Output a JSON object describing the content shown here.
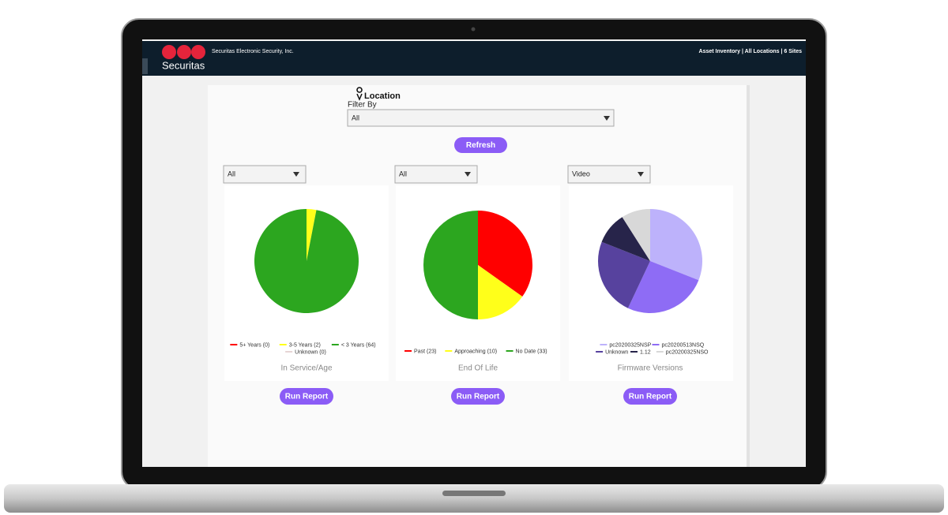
{
  "header": {
    "company": "Securitas",
    "subtitle": "Securitas Electronic Security, Inc.",
    "breadcrumb": "Asset Inventory | All Locations | 6 Sites"
  },
  "filter": {
    "title": "Location",
    "label": "Filter By",
    "selected": "All",
    "button": "Refresh"
  },
  "cards": [
    {
      "dropdown": "All",
      "button": "Run Report"
    },
    {
      "dropdown": "All",
      "button": "Run Report"
    },
    {
      "dropdown": "Video",
      "button": "Run Report"
    }
  ],
  "chart_data": [
    {
      "type": "pie",
      "title": "In Service/Age",
      "categories": [
        "5+ Years (0)",
        "3-5 Years (2)",
        "< 3 Years (64)",
        "Unknown (0)"
      ],
      "values": [
        0,
        2,
        64,
        0
      ],
      "colors": [
        "#ff0000",
        "#ffff1a",
        "#2ca61f",
        "#e6d5d5"
      ]
    },
    {
      "type": "pie",
      "title": "End Of Life",
      "categories": [
        "Past (23)",
        "Approaching (10)",
        "No Date (33)"
      ],
      "values": [
        23,
        10,
        33
      ],
      "colors": [
        "#ff0000",
        "#ffff1a",
        "#2ca61f"
      ]
    },
    {
      "type": "pie",
      "title": "Firmware Versions",
      "categories": [
        "pc20200325NSP",
        "pc20200513NSQ",
        "Unknown",
        "1.12",
        "pc20200325NSO"
      ],
      "values": [
        31,
        26,
        24,
        10,
        9
      ],
      "colors": [
        "#bdb2fb",
        "#8e6cf5",
        "#57429e",
        "#27244a",
        "#d8d8d8"
      ]
    }
  ]
}
